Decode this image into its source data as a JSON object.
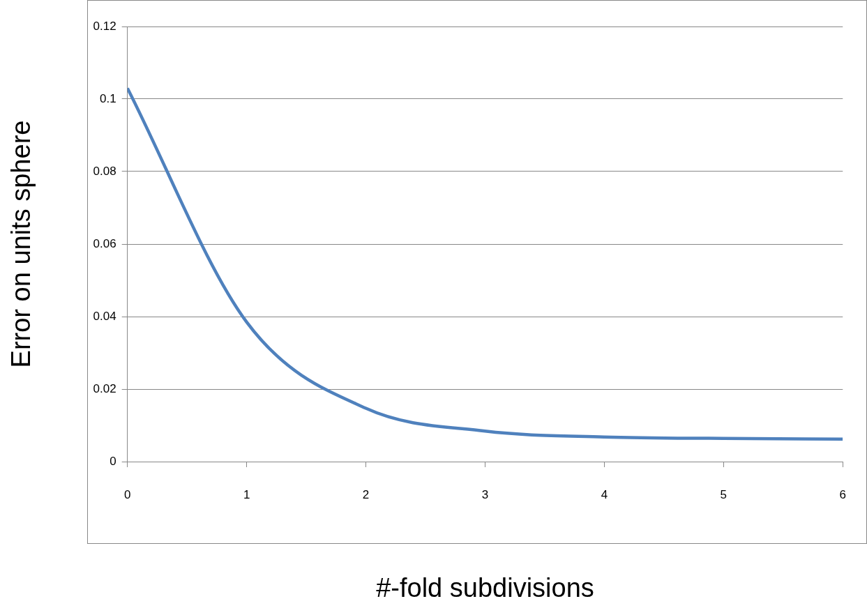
{
  "chart_data": {
    "type": "line",
    "xlabel": "#-fold subdivisions",
    "ylabel": "Error on units sphere",
    "x": [
      0,
      1,
      2,
      3,
      4,
      5,
      6
    ],
    "series": [
      {
        "color": "#4f81bd",
        "values": [
          0.103,
          0.0385,
          0.0147,
          0.0084,
          0.0068,
          0.0064,
          0.0062
        ]
      }
    ],
    "xlim": [
      0,
      6
    ],
    "xticks": [
      0,
      1,
      2,
      3,
      4,
      5,
      6
    ],
    "ylim": [
      0,
      0.12
    ],
    "yticks": [
      0,
      0.02,
      0.04,
      0.06,
      0.08,
      0.1,
      0.12
    ],
    "grid": "y",
    "legend": false,
    "marker": "none",
    "line_style": "solid"
  }
}
